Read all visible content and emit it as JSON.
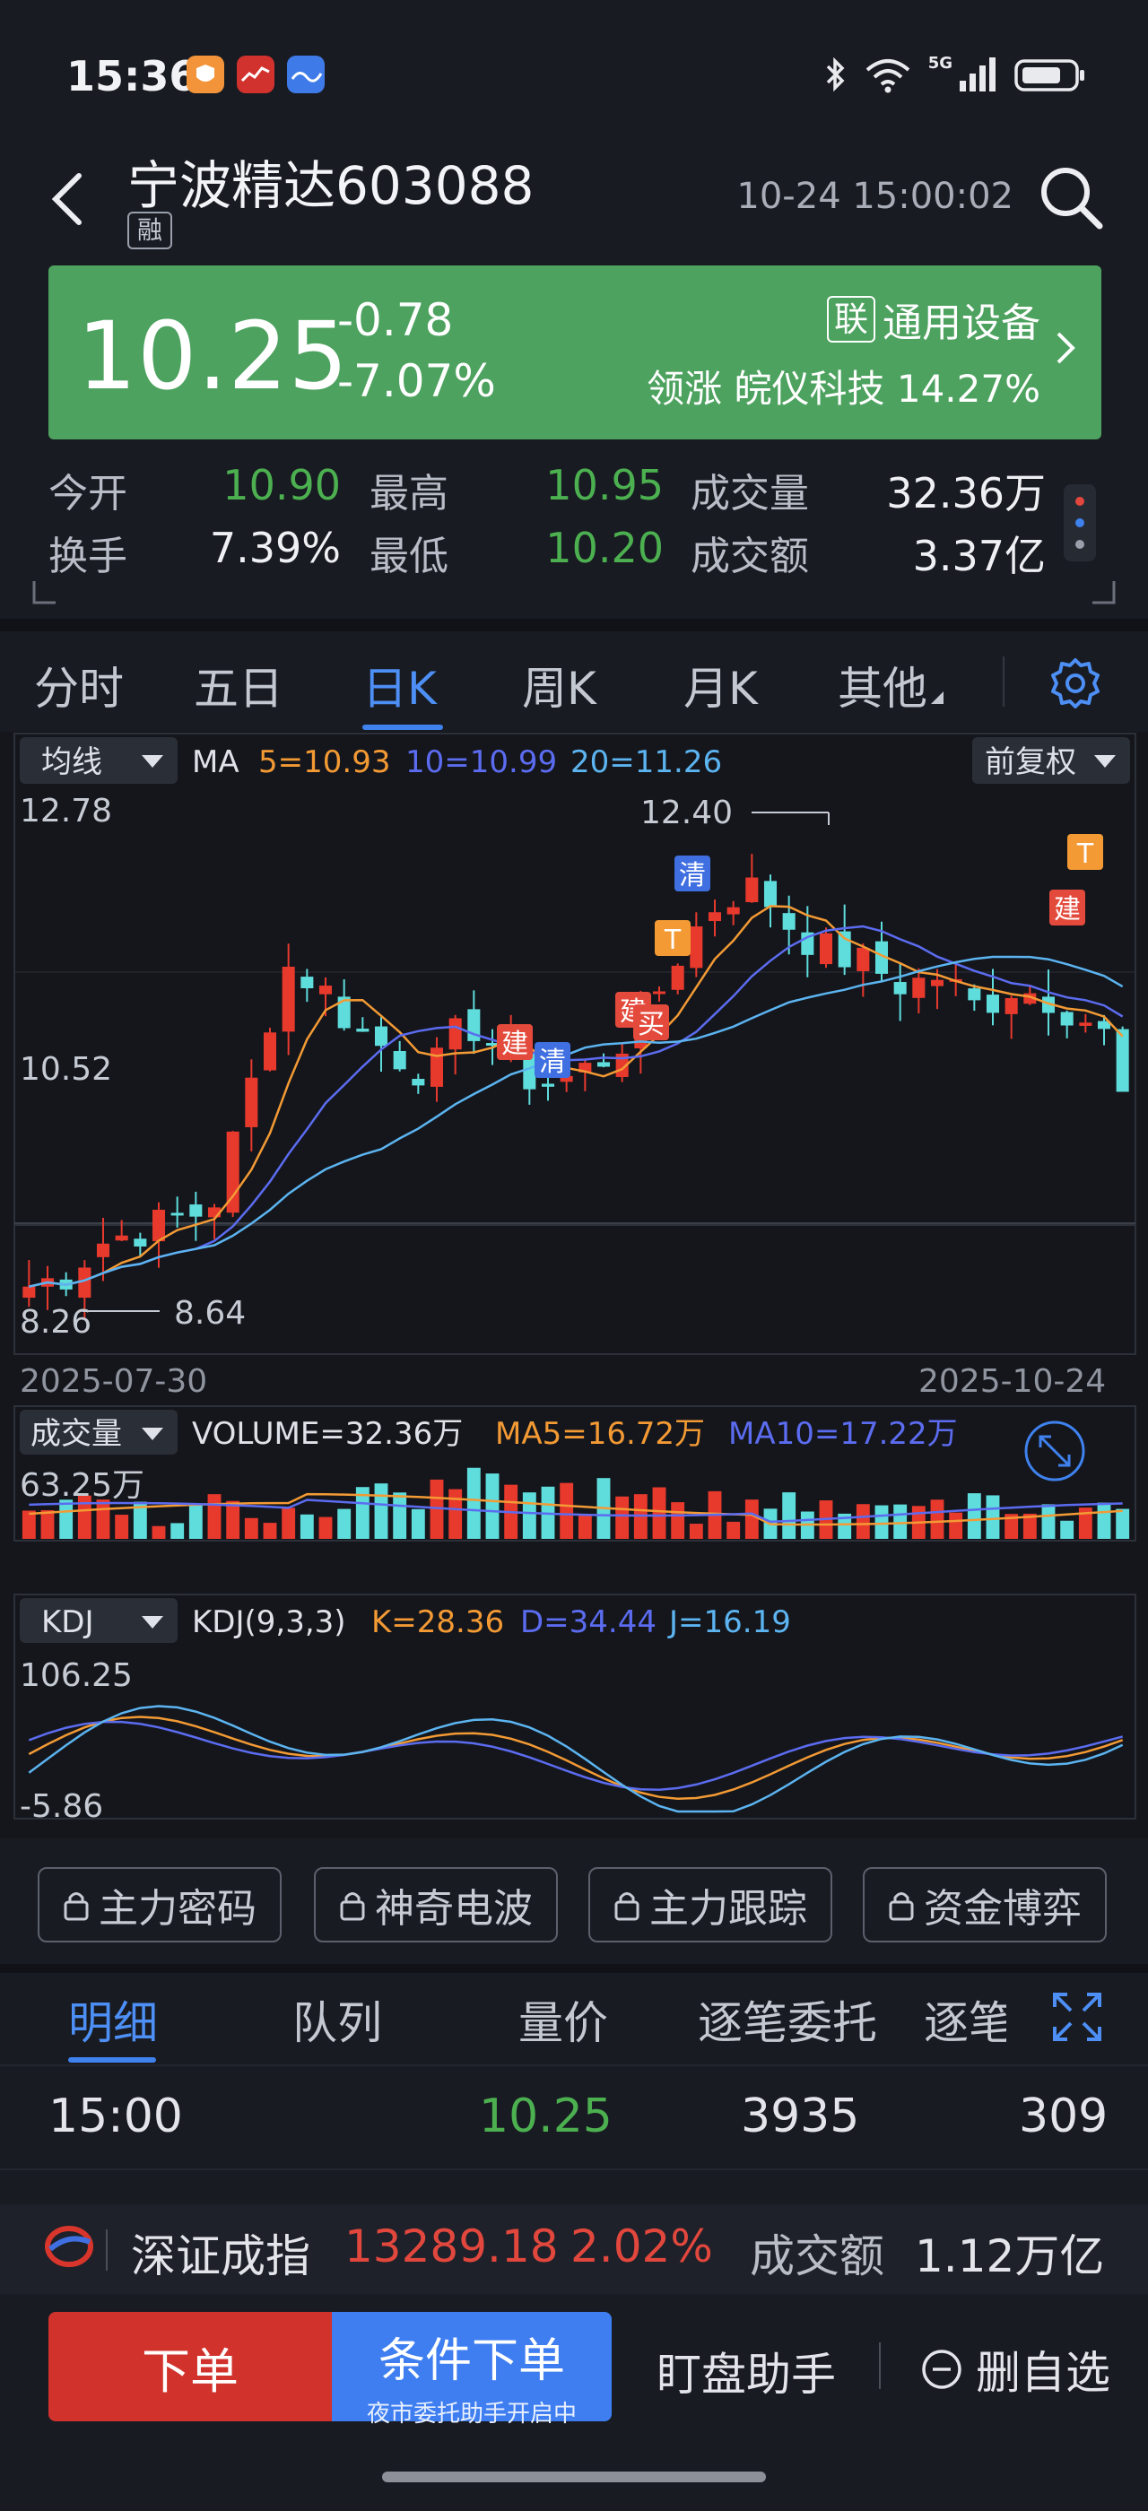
{
  "status_bar": {
    "time": "15:36",
    "network": "5G"
  },
  "header": {
    "title": "宁波精达603088",
    "margin_badge": "融",
    "quote_time": "10-24 15:00:02"
  },
  "price_panel": {
    "price": "10.25",
    "change": "-0.78",
    "change_pct": "-7.07%",
    "sector_tag": "联",
    "sector": "通用设备",
    "leader_prefix": "领涨",
    "leader_name": "皖仪科技",
    "leader_pct": "14.27%"
  },
  "stats": {
    "open_label": "今开",
    "open": "10.90",
    "high_label": "最高",
    "high": "10.95",
    "volume_label": "成交量",
    "volume": "32.36万",
    "turnover_rate_label": "换手",
    "turnover_rate": "7.39%",
    "low_label": "最低",
    "low": "10.20",
    "amount_label": "成交额",
    "amount": "3.37亿"
  },
  "period_tabs": [
    "分时",
    "五日",
    "日K",
    "周K",
    "月K",
    "其他"
  ],
  "chart": {
    "ma_dropdown": "均线",
    "ma_label": "MA",
    "ma5": "5=10.93",
    "ma10": "10=10.99",
    "ma20": "20=11.26",
    "adjust_dropdown": "前复权",
    "y_top": "12.78",
    "y_mid": "10.52",
    "y_bottom": "8.26",
    "high_mark": "12.40",
    "low_mark": "8.64",
    "date_start": "2025-07-30",
    "date_end": "2025-10-24",
    "signals": [
      "建",
      "清",
      "T",
      "建",
      "买",
      "清",
      "T",
      "建"
    ],
    "volume_dropdown": "成交量",
    "volume_text": "VOLUME=32.36万",
    "vol_ma5": "MA5=16.72万",
    "vol_ma10": "MA10=17.22万",
    "volume_max": "63.25万",
    "kdj_dropdown": "KDJ",
    "kdj_params": "KDJ(9,3,3)",
    "kdj_k": "K=28.36",
    "kdj_d": "D=34.44",
    "kdj_j": "J=16.19",
    "kdj_max": "106.25",
    "kdj_min": "-5.86",
    "colors": {
      "up": "#e8392d",
      "down": "#5fdcdc",
      "ma5": "#f39a34",
      "ma10": "#5c6cf0",
      "ma20": "#5cb4f0"
    }
  },
  "tools": [
    "主力密码",
    "神奇电波",
    "主力跟踪",
    "资金博弈"
  ],
  "detail_tabs": [
    "明细",
    "队列",
    "量价",
    "逐笔委托",
    "逐笔"
  ],
  "trade_row": {
    "time": "15:00",
    "price": "10.25",
    "qty": "3935",
    "count": "309"
  },
  "index_bar": {
    "name": "深证成指",
    "value": "13289.18",
    "pct": "2.02%",
    "turnover_label": "成交额",
    "turnover": "1.12万亿"
  },
  "actions": {
    "order": "下单",
    "cond_order": "条件下单",
    "cond_order_sub": "夜市委托助手开启中",
    "assistant": "盯盘助手",
    "remove_watch": "删自选"
  }
}
